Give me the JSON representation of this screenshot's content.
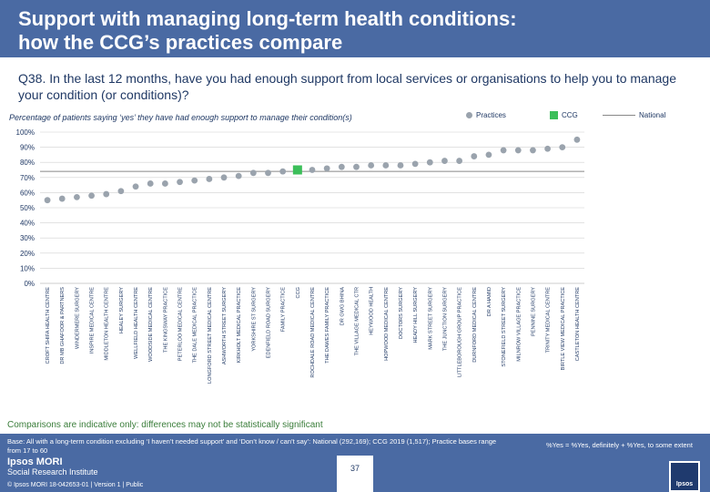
{
  "header": {
    "title_line1": "Support with managing long-term health conditions:",
    "title_line2": "how the CCG’s practices compare"
  },
  "question": "Q38. In the last 12 months, have you had enough support from local services or organisations to help you to manage your condition (or conditions)?",
  "subtitle": "Percentage of patients saying ‘yes’ they have had enough support to manage their condition(s)",
  "legend": {
    "practices": "Practices",
    "ccg": "CCG",
    "national": "National"
  },
  "colors": {
    "practice": "#9aa3ad",
    "ccg": "#3cbf5a",
    "national": "#888888",
    "grid": "#d0d0d0",
    "label": "#1f3864"
  },
  "chart_data": {
    "type": "scatter",
    "title": "Percentage of patients saying ‘yes’ they have had enough support to manage their condition(s)",
    "ylim": [
      0,
      100
    ],
    "yticks": [
      "0%",
      "10%",
      "20%",
      "30%",
      "40%",
      "50%",
      "60%",
      "70%",
      "80%",
      "90%",
      "100%"
    ],
    "national": 74,
    "categories": [
      "CROFT SHIFA HEALTH CENTRE",
      "DR MB GHAFOOR & PARTNERS",
      "WINDERMERE SURGERY",
      "INSPIRE MEDICAL CENTRE",
      "MIDDLETON HEALTH CENTRE",
      "HEALEY SURGERY",
      "WELLFIELD HEALTH CENTRE",
      "WOODSIDE MEDICAL CENTRE",
      "THE KINGSWAY PRACTICE",
      "PETERLOO MEDICAL CENTRE",
      "THE DALE MEDICAL PRACTICE",
      "LONGFORD STREET MEDICAL CENTRE",
      "ASHWORTH STREET SURGERY",
      "KIRKHOLT MEDICAL PRACTICE",
      "YORKSHIRE ST SURGERY",
      "EDENFIELD ROAD SURGERY",
      "FAMILY PRACTICE",
      "CCG",
      "ROCHDALE ROAD MEDICAL CENTRE",
      "THE DAWES FAMILY PRACTICE",
      "DR GWG BHINA",
      "THE VILLAGE MEDICAL CTR",
      "HEYWOOD HEALTH",
      "HOPWOOD MEDICAL CENTRE",
      "DOCTORS SURGERY",
      "HEADY HILL SURGERY",
      "MARK STREET SURGERY",
      "THE JUNCTION SURGERY",
      "LITTLEBOROUGH GROUP PRACTICE",
      "DURNFORD MEDICAL CENTRE",
      "DR A HAMID",
      "STONEFIELD STREET SURGERY",
      "MILNROW VILLAGE PRACTICE",
      "PENNINE SURGERY",
      "TRINITY MEDICAL CENTRE",
      "BIRTLE VIEW MEDICAL PRACTICE",
      "CASTLETON HEALTH CENTRE"
    ],
    "values": [
      55,
      56,
      57,
      58,
      59,
      61,
      64,
      66,
      66,
      67,
      68,
      69,
      70,
      71,
      73,
      73,
      74,
      75,
      75,
      76,
      77,
      77,
      78,
      78,
      78,
      79,
      80,
      81,
      81,
      84,
      85,
      88,
      88,
      88,
      89,
      90,
      95
    ],
    "ccg_index": 17
  },
  "note": "Comparisons are indicative only: differences may not be statistically significant",
  "footer": {
    "base_text": "Base: All with a long-term condition excluding ‘I haven’t needed support’ and ‘Don’t know / can’t say’: National (292,169); CCG 2019 (1,517); Practice bases range from 17 to 60",
    "yes_note": "%Yes = %Yes, definitely + %Yes, to some extent",
    "page_number": "37",
    "logo_line1": "Ipsos MORI",
    "logo_line2": "Social Research Institute",
    "copyright": "© Ipsos MORI    18-042653-01 | Version 1 | Public",
    "ipsos_logo": "Ipsos"
  }
}
